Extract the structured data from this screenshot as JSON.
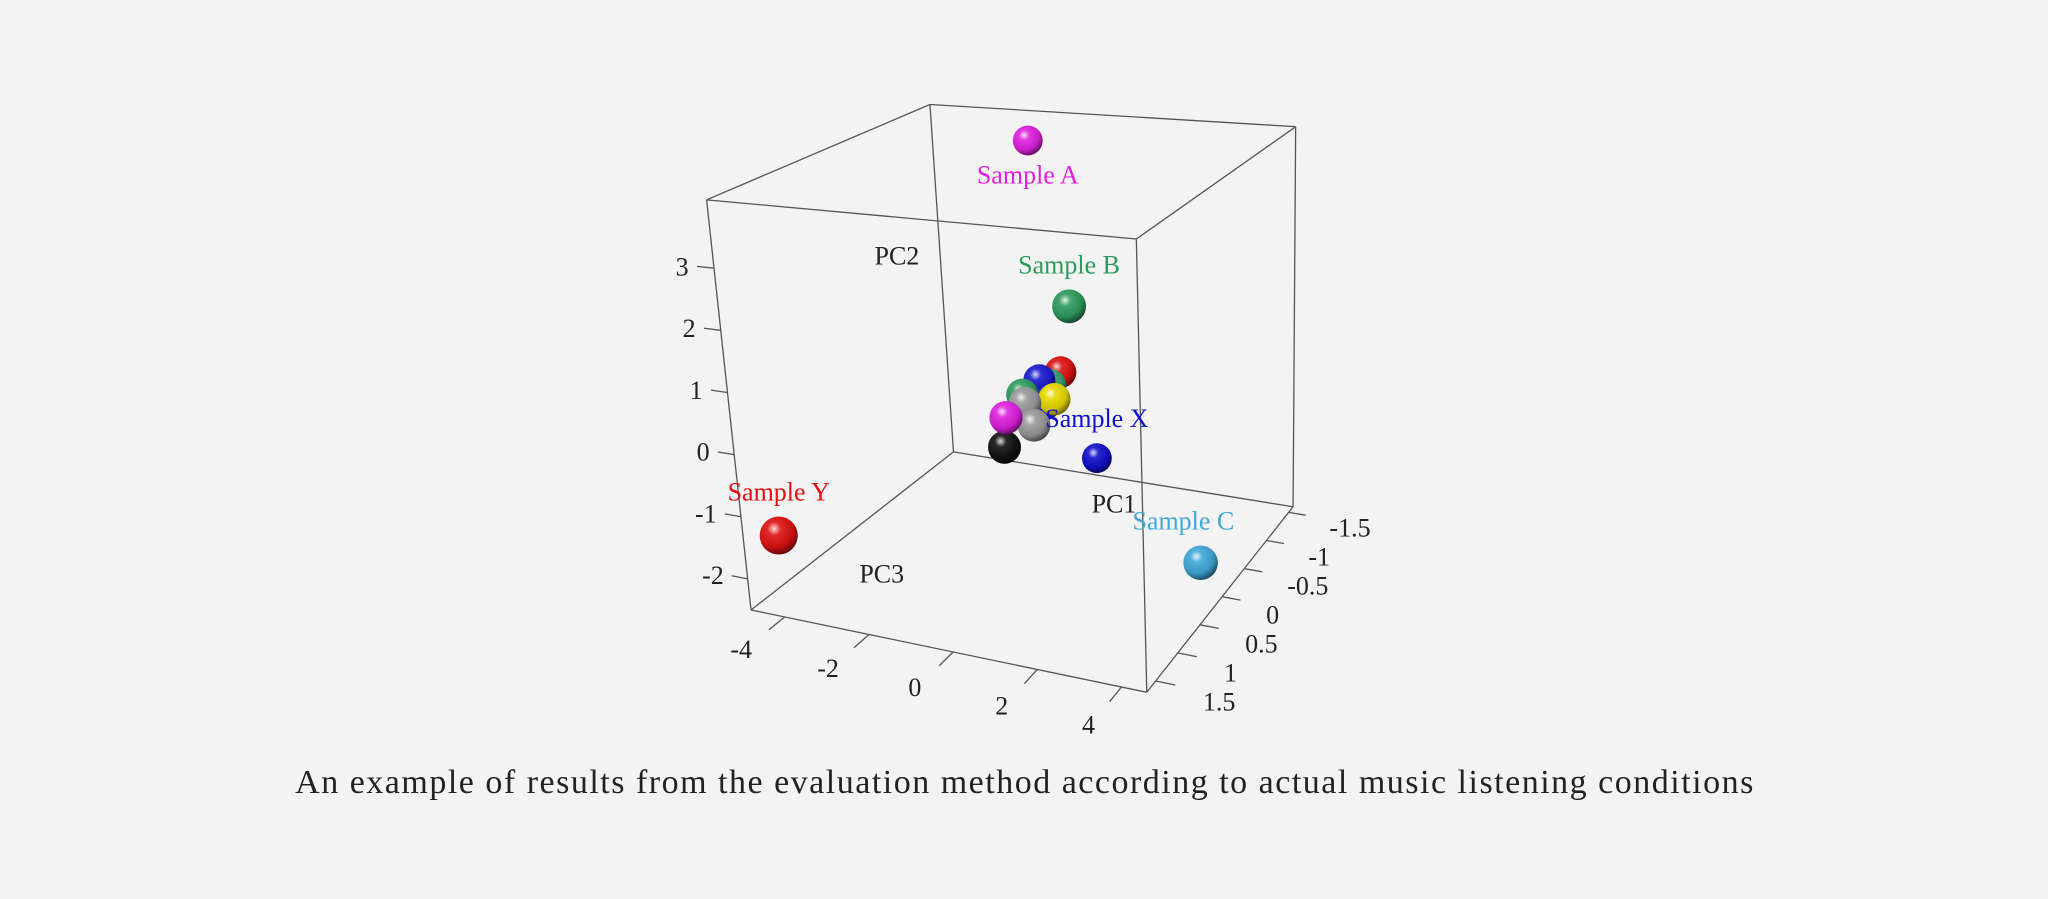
{
  "chart_data": {
    "type": "scatter3d",
    "caption": "An example of results from the evaluation method according to actual music listening conditions",
    "xlabel": "PC1",
    "ylabel": "PC2",
    "zlabel": "PC3",
    "xlim": [
      -4.8,
      4.6
    ],
    "ylim": [
      -2.5,
      4.1
    ],
    "zlim": [
      -1.6,
      1.7
    ],
    "xticks": [
      -4,
      -2,
      0,
      2,
      4
    ],
    "yticks": [
      -2,
      -1,
      0,
      1,
      2,
      3
    ],
    "zticks": [
      -1.5,
      -1,
      -0.5,
      0,
      0.5,
      1,
      1.5
    ],
    "labels": [
      "Sample A",
      "Sample B",
      "Sample X",
      "Sample C",
      "Sample Y",
      null,
      null,
      null,
      null,
      null,
      null,
      null,
      null,
      null,
      null
    ],
    "x": [
      -1.27,
      1.22,
      0.18,
      4.5,
      -4.47,
      0.1,
      0.2,
      -0.3,
      -0.6,
      -0.4,
      -0.1,
      -0.75,
      -0.2,
      -0.2,
      -0.9
    ],
    "y": [
      3.97,
      2.0,
      -1.5,
      -1.65,
      -1.5,
      0.4,
      0.1,
      0.3,
      0.1,
      0.05,
      0.2,
      -0.15,
      -0.1,
      -0.3,
      -0.7
    ],
    "z": [
      -0.94,
      0.21,
      -0.94,
      0.38,
      1.37,
      -0.4,
      -0.2,
      -0.3,
      -0.2,
      -0.1,
      -0.35,
      0.0,
      -0.3,
      -0.1,
      -0.05
    ],
    "colors": [
      "#e020e0",
      "#2e9a5e",
      "#1010cc",
      "#40a8d8",
      "#dd1111",
      "#dd1111",
      "#e8d800",
      "#1a1acc",
      "#2e9a5e",
      "#999999",
      "#3aa070",
      "#e020e0",
      "#1a1acc",
      "#999999",
      "#111111"
    ]
  }
}
